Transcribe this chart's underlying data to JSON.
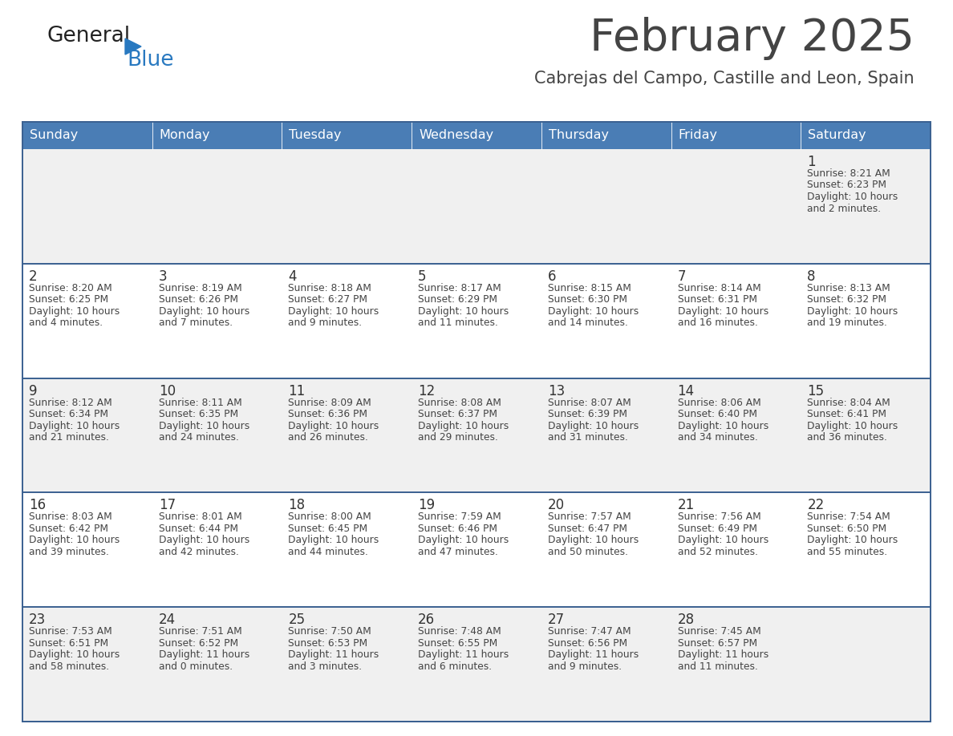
{
  "title": "February 2025",
  "subtitle": "Cabrejas del Campo, Castille and Leon, Spain",
  "header_bg": "#4a7db5",
  "header_text_color": "#ffffff",
  "days_of_week": [
    "Sunday",
    "Monday",
    "Tuesday",
    "Wednesday",
    "Thursday",
    "Friday",
    "Saturday"
  ],
  "row_bg_light": "#f0f0f0",
  "row_bg_white": "#ffffff",
  "cell_border_color": "#3a6090",
  "text_color": "#444444",
  "day_number_color": "#333333",
  "calendar": [
    [
      {
        "day": null,
        "sunrise": null,
        "sunset": null,
        "daylight": null
      },
      {
        "day": null,
        "sunrise": null,
        "sunset": null,
        "daylight": null
      },
      {
        "day": null,
        "sunrise": null,
        "sunset": null,
        "daylight": null
      },
      {
        "day": null,
        "sunrise": null,
        "sunset": null,
        "daylight": null
      },
      {
        "day": null,
        "sunrise": null,
        "sunset": null,
        "daylight": null
      },
      {
        "day": null,
        "sunrise": null,
        "sunset": null,
        "daylight": null
      },
      {
        "day": 1,
        "sunrise": "8:21 AM",
        "sunset": "6:23 PM",
        "daylight": "10 hours\nand 2 minutes."
      }
    ],
    [
      {
        "day": 2,
        "sunrise": "8:20 AM",
        "sunset": "6:25 PM",
        "daylight": "10 hours\nand 4 minutes."
      },
      {
        "day": 3,
        "sunrise": "8:19 AM",
        "sunset": "6:26 PM",
        "daylight": "10 hours\nand 7 minutes."
      },
      {
        "day": 4,
        "sunrise": "8:18 AM",
        "sunset": "6:27 PM",
        "daylight": "10 hours\nand 9 minutes."
      },
      {
        "day": 5,
        "sunrise": "8:17 AM",
        "sunset": "6:29 PM",
        "daylight": "10 hours\nand 11 minutes."
      },
      {
        "day": 6,
        "sunrise": "8:15 AM",
        "sunset": "6:30 PM",
        "daylight": "10 hours\nand 14 minutes."
      },
      {
        "day": 7,
        "sunrise": "8:14 AM",
        "sunset": "6:31 PM",
        "daylight": "10 hours\nand 16 minutes."
      },
      {
        "day": 8,
        "sunrise": "8:13 AM",
        "sunset": "6:32 PM",
        "daylight": "10 hours\nand 19 minutes."
      }
    ],
    [
      {
        "day": 9,
        "sunrise": "8:12 AM",
        "sunset": "6:34 PM",
        "daylight": "10 hours\nand 21 minutes."
      },
      {
        "day": 10,
        "sunrise": "8:11 AM",
        "sunset": "6:35 PM",
        "daylight": "10 hours\nand 24 minutes."
      },
      {
        "day": 11,
        "sunrise": "8:09 AM",
        "sunset": "6:36 PM",
        "daylight": "10 hours\nand 26 minutes."
      },
      {
        "day": 12,
        "sunrise": "8:08 AM",
        "sunset": "6:37 PM",
        "daylight": "10 hours\nand 29 minutes."
      },
      {
        "day": 13,
        "sunrise": "8:07 AM",
        "sunset": "6:39 PM",
        "daylight": "10 hours\nand 31 minutes."
      },
      {
        "day": 14,
        "sunrise": "8:06 AM",
        "sunset": "6:40 PM",
        "daylight": "10 hours\nand 34 minutes."
      },
      {
        "day": 15,
        "sunrise": "8:04 AM",
        "sunset": "6:41 PM",
        "daylight": "10 hours\nand 36 minutes."
      }
    ],
    [
      {
        "day": 16,
        "sunrise": "8:03 AM",
        "sunset": "6:42 PM",
        "daylight": "10 hours\nand 39 minutes."
      },
      {
        "day": 17,
        "sunrise": "8:01 AM",
        "sunset": "6:44 PM",
        "daylight": "10 hours\nand 42 minutes."
      },
      {
        "day": 18,
        "sunrise": "8:00 AM",
        "sunset": "6:45 PM",
        "daylight": "10 hours\nand 44 minutes."
      },
      {
        "day": 19,
        "sunrise": "7:59 AM",
        "sunset": "6:46 PM",
        "daylight": "10 hours\nand 47 minutes."
      },
      {
        "day": 20,
        "sunrise": "7:57 AM",
        "sunset": "6:47 PM",
        "daylight": "10 hours\nand 50 minutes."
      },
      {
        "day": 21,
        "sunrise": "7:56 AM",
        "sunset": "6:49 PM",
        "daylight": "10 hours\nand 52 minutes."
      },
      {
        "day": 22,
        "sunrise": "7:54 AM",
        "sunset": "6:50 PM",
        "daylight": "10 hours\nand 55 minutes."
      }
    ],
    [
      {
        "day": 23,
        "sunrise": "7:53 AM",
        "sunset": "6:51 PM",
        "daylight": "10 hours\nand 58 minutes."
      },
      {
        "day": 24,
        "sunrise": "7:51 AM",
        "sunset": "6:52 PM",
        "daylight": "11 hours\nand 0 minutes."
      },
      {
        "day": 25,
        "sunrise": "7:50 AM",
        "sunset": "6:53 PM",
        "daylight": "11 hours\nand 3 minutes."
      },
      {
        "day": 26,
        "sunrise": "7:48 AM",
        "sunset": "6:55 PM",
        "daylight": "11 hours\nand 6 minutes."
      },
      {
        "day": 27,
        "sunrise": "7:47 AM",
        "sunset": "6:56 PM",
        "daylight": "11 hours\nand 9 minutes."
      },
      {
        "day": 28,
        "sunrise": "7:45 AM",
        "sunset": "6:57 PM",
        "daylight": "11 hours\nand 11 minutes."
      },
      {
        "day": null,
        "sunrise": null,
        "sunset": null,
        "daylight": null
      }
    ]
  ],
  "logo_general_color": "#222222",
  "logo_blue_color": "#2979c0",
  "fig_bg": "#ffffff",
  "fig_width": 11.88,
  "fig_height": 9.18,
  "dpi": 100
}
